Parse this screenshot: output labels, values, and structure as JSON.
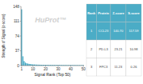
{
  "chart_data": {
    "type": "bar",
    "title": "HuProt™",
    "x_label": "Signal Rank (Top 50)",
    "y_label": "Strength of Signal (z-score)",
    "x": [
      1,
      2,
      3,
      4,
      5,
      6,
      7,
      8,
      9,
      10,
      11,
      12,
      13,
      14,
      15,
      16,
      17,
      18,
      19,
      20,
      21,
      22,
      23,
      24,
      25,
      26,
      27,
      28,
      29,
      30,
      31,
      32,
      33,
      34,
      35,
      36,
      37,
      38,
      39,
      40,
      41,
      42,
      43,
      44,
      45,
      46,
      47,
      48,
      49,
      50
    ],
    "values": [
      140.7,
      23.21,
      11.23,
      7.5,
      5.8,
      4.9,
      4.2,
      3.7,
      3.3,
      3.0,
      2.8,
      2.6,
      2.4,
      2.3,
      2.2,
      2.1,
      2.0,
      1.95,
      1.9,
      1.85,
      1.8,
      1.75,
      1.7,
      1.67,
      1.64,
      1.61,
      1.58,
      1.55,
      1.52,
      1.5,
      1.48,
      1.46,
      1.44,
      1.42,
      1.4,
      1.38,
      1.36,
      1.34,
      1.32,
      1.3,
      1.28,
      1.26,
      1.24,
      1.22,
      1.2,
      1.18,
      1.16,
      1.14,
      1.12,
      1.1
    ],
    "color": "#4bacc6",
    "xlim": [
      0.5,
      50.5
    ],
    "xticks": [
      1,
      10,
      20,
      30,
      40,
      50
    ],
    "ylim": [
      0,
      148
    ],
    "yticks": [
      0,
      37,
      74,
      111,
      148
    ],
    "grid": false,
    "table": {
      "columns": [
        "Rank",
        "Protein",
        "Z-score",
        "S-score"
      ],
      "rows": [
        [
          "1",
          "CCL23",
          "140.70",
          "117.59"
        ],
        [
          "2",
          "PD-L3",
          "23.21",
          "10.98"
        ],
        [
          "3",
          "FPC3",
          "11.23",
          "0.26"
        ]
      ]
    }
  }
}
